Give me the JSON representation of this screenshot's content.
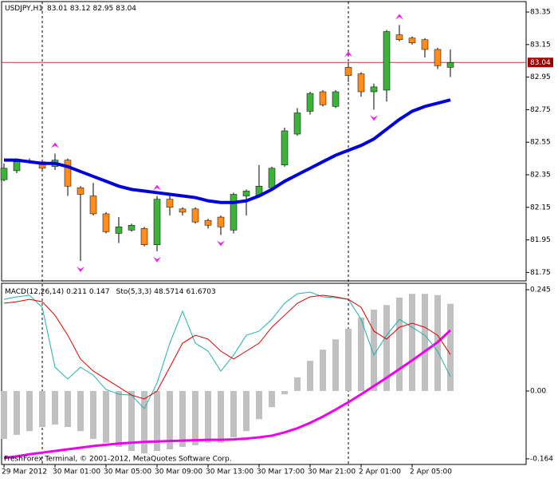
{
  "chart_data": [
    {
      "type": "candlestick",
      "title": "USDJPY,H1",
      "quote": [
        83.01,
        83.12,
        82.95,
        83.04
      ],
      "categories": [
        "29 Mar 2012",
        null,
        null,
        null,
        "30 Mar 01:00",
        null,
        null,
        null,
        "30 Mar 05:00",
        null,
        null,
        null,
        "30 Mar 09:00",
        null,
        null,
        null,
        "30 Mar 13:00",
        null,
        null,
        null,
        "30 Mar 17:00",
        null,
        null,
        null,
        "30 Mar 21:00",
        null,
        null,
        null,
        "2 Apr 01:00",
        null,
        null,
        null,
        "2 Apr 05:00",
        null,
        null,
        null
      ],
      "open": [
        82.32,
        82.375,
        82.43,
        82.43,
        82.4,
        82.44,
        82.27,
        82.22,
        82.11,
        81.99,
        82.01,
        82.02,
        81.92,
        82.2,
        82.14,
        82.14,
        82.07,
        82.09,
        82.01,
        82.22,
        82.22,
        82.27,
        82.41,
        82.6,
        82.74,
        82.86,
        82.77,
        83.01,
        82.97,
        82.86,
        82.87,
        83.21,
        83.19,
        83.18,
        83.12,
        83.01
      ],
      "high": [
        82.42,
        82.45,
        82.45,
        82.44,
        82.48,
        82.45,
        82.28,
        82.3,
        82.12,
        82.09,
        82.05,
        82.03,
        82.22,
        82.22,
        82.15,
        82.15,
        82.08,
        82.1,
        82.24,
        82.26,
        82.41,
        82.4,
        82.64,
        82.76,
        82.86,
        82.87,
        82.87,
        83.04,
        82.98,
        82.91,
        83.24,
        83.27,
        83.2,
        83.19,
        83.13,
        83.12
      ],
      "low": [
        82.31,
        82.36,
        82.42,
        82.38,
        82.38,
        82.22,
        81.82,
        82.1,
        81.99,
        81.93,
        82.0,
        81.91,
        81.88,
        82.1,
        82.1,
        82.05,
        82.02,
        81.98,
        81.99,
        82.1,
        82.21,
        82.25,
        82.4,
        82.59,
        82.72,
        82.77,
        82.76,
        82.92,
        82.83,
        82.75,
        82.8,
        83.17,
        83.15,
        83.07,
        83.0,
        82.95
      ],
      "close": [
        82.39,
        82.43,
        82.43,
        82.39,
        82.44,
        82.28,
        82.23,
        82.11,
        82.0,
        82.03,
        82.04,
        81.92,
        82.2,
        82.15,
        82.12,
        82.06,
        82.04,
        82.03,
        82.23,
        82.25,
        82.28,
        82.39,
        82.62,
        82.73,
        82.85,
        82.78,
        82.86,
        82.96,
        82.86,
        82.89,
        83.23,
        83.18,
        83.16,
        83.12,
        83.02,
        83.04
      ],
      "up_color": "#3cb43c",
      "down_color": "#ff8c1a",
      "ma": {
        "color": "#0000dd",
        "values": [
          82.44,
          82.44,
          82.43,
          82.42,
          82.42,
          82.4,
          82.37,
          82.34,
          82.31,
          82.28,
          82.26,
          82.25,
          82.24,
          82.23,
          82.22,
          82.21,
          82.19,
          82.18,
          82.18,
          82.19,
          82.22,
          82.26,
          82.31,
          82.35,
          82.39,
          82.43,
          82.47,
          82.5,
          82.53,
          82.57,
          82.63,
          82.69,
          82.74,
          82.77,
          82.79,
          82.81
        ]
      },
      "fractals_up": [
        null,
        null,
        null,
        null,
        82.48,
        null,
        null,
        null,
        null,
        null,
        null,
        null,
        82.22,
        null,
        null,
        null,
        null,
        null,
        null,
        null,
        null,
        null,
        null,
        null,
        null,
        null,
        null,
        83.04,
        null,
        null,
        null,
        83.27,
        null,
        null,
        null,
        null
      ],
      "fractals_down": [
        null,
        null,
        null,
        null,
        null,
        null,
        81.82,
        null,
        null,
        null,
        null,
        null,
        81.88,
        null,
        null,
        null,
        null,
        81.98,
        null,
        null,
        null,
        null,
        null,
        null,
        null,
        null,
        null,
        null,
        null,
        82.75,
        null,
        null,
        null,
        null,
        null,
        null
      ],
      "fractal_color": "#ee22ee",
      "bid": 83.04,
      "separators": [
        3,
        27
      ],
      "ylim": [
        81.698,
        83.414
      ],
      "yticks": [
        83.35,
        83.15,
        82.95,
        82.75,
        82.55,
        82.35,
        82.15,
        81.95,
        81.75
      ]
    },
    {
      "type": "macd",
      "title": "MACD(12,26,14)",
      "macd_values": [
        0.211,
        0.147
      ],
      "sto_title": "Sto(5,3,3)",
      "sto_values": [
        48.5714,
        61.6703
      ],
      "footer": "FreshForex Terminal, © 2001-2012, MetaQuotes Software Corp.",
      "histogram": {
        "color": "#c0c0c0",
        "values": [
          -0.116,
          -0.106,
          -0.097,
          -0.087,
          -0.081,
          -0.087,
          -0.097,
          -0.116,
          -0.125,
          -0.135,
          -0.145,
          -0.151,
          -0.145,
          -0.141,
          -0.135,
          -0.131,
          -0.125,
          -0.125,
          -0.112,
          -0.097,
          -0.068,
          -0.039,
          -0.008,
          0.033,
          0.073,
          0.1,
          0.125,
          0.151,
          0.178,
          0.197,
          0.208,
          0.226,
          0.235,
          0.235,
          0.232,
          0.211
        ]
      },
      "series": [
        {
          "color": "#ee00ee",
          "values": [
            -0.162,
            -0.158,
            -0.153,
            -0.149,
            -0.145,
            -0.141,
            -0.137,
            -0.133,
            -0.13,
            -0.127,
            -0.125,
            -0.123,
            -0.122,
            -0.121,
            -0.12,
            -0.119,
            -0.118,
            -0.118,
            -0.117,
            -0.115,
            -0.112,
            -0.108,
            -0.1,
            -0.09,
            -0.077,
            -0.062,
            -0.045,
            -0.027,
            -0.008,
            0.012,
            0.032,
            0.053,
            0.074,
            0.096,
            0.118,
            0.147
          ]
        },
        {
          "color": "#20b2aa",
          "axis": "y2",
          "values": [
            94.3,
            95.8,
            96.7,
            89.6,
            54.2,
            47.2,
            54.2,
            49.5,
            41.0,
            38.2,
            37.7,
            29.7,
            44.8,
            68.4,
            87.3,
            68.4,
            63.7,
            51.9,
            61.3,
            73.1,
            75.5,
            82.5,
            92.0,
            97.6,
            98.6,
            95.8,
            95.3,
            94.3,
            82.5,
            61.3,
            73.1,
            82.5,
            77.8,
            73.1,
            63.7,
            48.5714
          ]
        },
        {
          "color": "#dd0000",
          "axis": "y2",
          "values": [
            92.0,
            92.9,
            94.3,
            92.9,
            84.9,
            73.1,
            59.0,
            51.9,
            47.2,
            42.5,
            37.7,
            35.4,
            40.1,
            54.2,
            68.4,
            73.1,
            70.8,
            63.7,
            59.0,
            63.7,
            68.4,
            77.8,
            84.9,
            92.0,
            95.8,
            96.7,
            95.8,
            94.3,
            89.6,
            75.5,
            70.8,
            77.8,
            80.2,
            77.8,
            73.1,
            61.6703
          ]
        }
      ],
      "ylim": [
        -0.1776,
        0.2606
      ],
      "yticks": [
        0.245,
        {
          "value": 0,
          "label": "0.00"
        },
        -0.164
      ],
      "y2lim": [
        -3.3,
        103.8
      ]
    }
  ]
}
